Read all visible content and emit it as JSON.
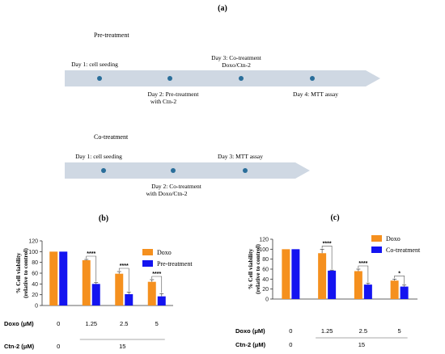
{
  "figure_label_a": "(a)",
  "pretreatment": {
    "title": "Pre-treatment",
    "steps": [
      {
        "label": "Day 1:  cell seeding",
        "label2": "",
        "pos": "above"
      },
      {
        "label": "Day 2: Pre-treatment",
        "label2": "with Ctn-2",
        "pos": "below"
      },
      {
        "label": "Day 3: Co-treatment",
        "label2": "Doxo/Ctn-2",
        "pos": "above"
      },
      {
        "label": "Day 4: MTT assay",
        "label2": "",
        "pos": "below"
      }
    ]
  },
  "cotreatment": {
    "title": "Co-treatment",
    "steps": [
      {
        "label": "Day 1:  cell seeding",
        "label2": "",
        "pos": "above"
      },
      {
        "label": "Day 2: Co-treatment",
        "label2": "with Doxo/Ctn-2",
        "pos": "below"
      },
      {
        "label": "Day 3: MTT assay",
        "label2": "",
        "pos": "above"
      }
    ]
  },
  "colors": {
    "doxo": "#f5901e",
    "treatment": "#1414f0",
    "arrow": "#cfd8e3",
    "dot": "#2a6e9a"
  },
  "chart_data": [
    {
      "panel": "(b)",
      "type": "bar",
      "ylabel": "% Cell viability",
      "ylabel2": "(relative to control)",
      "ylim": [
        0,
        120
      ],
      "yticks": [
        0,
        20,
        40,
        60,
        80,
        100,
        120
      ],
      "categories": [
        "0",
        "1.25",
        "2.5",
        "5"
      ],
      "series": [
        {
          "name": "Doxo",
          "values": [
            100,
            84,
            59,
            44
          ],
          "errors": [
            0,
            1.5,
            4,
            4
          ]
        },
        {
          "name": "Pre-treatment",
          "values": [
            100,
            40,
            21,
            17
          ],
          "errors": [
            0,
            2.5,
            4,
            5
          ]
        }
      ],
      "significance": [
        "",
        "****",
        "****",
        "****"
      ],
      "doxo_row": {
        "label": "Doxo (μM)",
        "values": [
          "0",
          "1.25",
          "2.5",
          "5"
        ]
      },
      "ctn_row": {
        "label": "Ctn-2 (μM)",
        "values": [
          "0",
          "15"
        ]
      }
    },
    {
      "panel": "(c)",
      "type": "bar",
      "ylabel": "% Cell viability",
      "ylabel2": "(relative to control)",
      "ylim": [
        0,
        120
      ],
      "yticks": [
        0,
        20,
        40,
        60,
        80,
        100,
        120
      ],
      "categories": [
        "0",
        "1.25",
        "2.5",
        "5"
      ],
      "series": [
        {
          "name": "Doxo",
          "values": [
            100,
            92,
            56,
            37
          ],
          "errors": [
            0,
            8,
            4,
            3
          ]
        },
        {
          "name": "Co-treatment",
          "values": [
            100,
            57,
            29,
            25
          ],
          "errors": [
            0,
            1,
            3,
            3
          ]
        }
      ],
      "significance": [
        "",
        "****",
        "****",
        "*"
      ],
      "doxo_row": {
        "label": "Doxo (μM)",
        "values": [
          "0",
          "1.25",
          "2.5",
          "5"
        ]
      },
      "ctn_row": {
        "label": "Ctn-2 (μM)",
        "values": [
          "0",
          "15"
        ]
      }
    }
  ]
}
